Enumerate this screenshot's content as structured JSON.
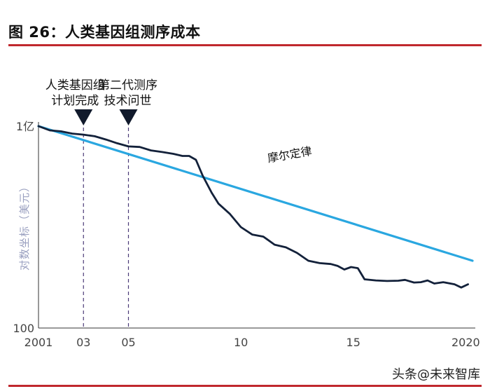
{
  "figure": {
    "title": "图 26：人类基因组测序成本",
    "watermark": "头条@未来智库"
  },
  "colors": {
    "accent_red": "#c0282d",
    "moore_line": "#2aa7e0",
    "cost_line": "#13213a",
    "ylabel": "#9aa0c0",
    "event_line": "#4b3b78"
  },
  "chart_data": {
    "type": "line",
    "title": "",
    "ylabel": "对数坐标（美元）",
    "yscale": "log",
    "ylim": [
      100,
      100000000
    ],
    "y_ticks": [
      {
        "value": 100000000,
        "label": "1亿"
      },
      {
        "value": 100,
        "label": "100"
      }
    ],
    "xlim": [
      2001,
      2020.3
    ],
    "x_ticks": [
      {
        "value": 2001,
        "label": "2001"
      },
      {
        "value": 2003,
        "label": "03"
      },
      {
        "value": 2005,
        "label": "05"
      },
      {
        "value": 2010,
        "label": "10"
      },
      {
        "value": 2015,
        "label": "15"
      },
      {
        "value": 2020,
        "label": "2020"
      }
    ],
    "events": [
      {
        "x": 2003,
        "label_lines": [
          "人类基因组",
          "计划完成"
        ]
      },
      {
        "x": 2005,
        "label_lines": [
          "第二代测序",
          "技术问世"
        ]
      }
    ],
    "series": [
      {
        "name": "摩尔定律",
        "x": [
          2001,
          2020.3
        ],
        "y": [
          100000000,
          10000
        ]
      },
      {
        "name": "",
        "x": [
          2001,
          2001.5,
          2002,
          2002.5,
          2003,
          2003.5,
          2004,
          2004.5,
          2005,
          2005.5,
          2006,
          2006.5,
          2007,
          2007.4,
          2007.7,
          2008,
          2008.3,
          2008.7,
          2009,
          2009.5,
          2010,
          2010.5,
          2011,
          2011.5,
          2012,
          2012.5,
          2013,
          2013.5,
          2014,
          2014.3,
          2014.6,
          2014.9,
          2015.2,
          2015.5,
          2016,
          2016.5,
          2017,
          2017.3,
          2017.7,
          2018,
          2018.3,
          2018.6,
          2019,
          2019.5,
          2019.8,
          2020.1
        ],
        "y": [
          100000000,
          75000000,
          70000000,
          60000000,
          56000000,
          50000000,
          40000000,
          31000000,
          25000000,
          24000000,
          19000000,
          17000000,
          15000000,
          13000000,
          13000000,
          10000000,
          3400000,
          1050000,
          500000,
          250000,
          100000,
          60000,
          52000,
          30000,
          25000,
          17000,
          10000,
          8500,
          8000,
          7000,
          5500,
          6500,
          6000,
          2800,
          2600,
          2500,
          2550,
          2700,
          2250,
          2300,
          2600,
          2100,
          2300,
          2000,
          1600,
          2000
        ]
      }
    ],
    "annotations": [
      {
        "text": "摩尔定律",
        "x": 2012.2,
        "y": 11000000
      }
    ]
  }
}
